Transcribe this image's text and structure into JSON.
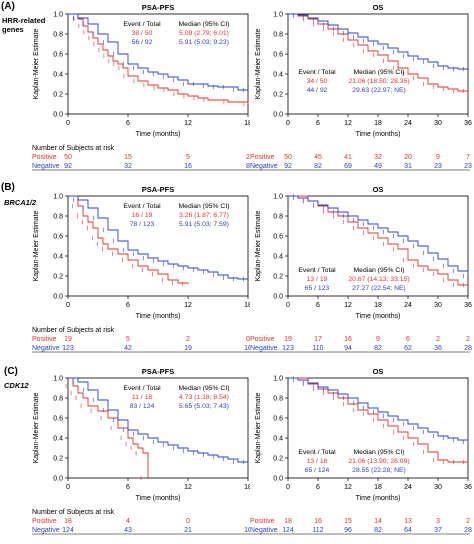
{
  "colors": {
    "positive": "#e8322b",
    "negative": "#2b3fd6",
    "axis": "#000000"
  },
  "common": {
    "ylabel": "Kaplan-Meier Estimate",
    "xlabel": "Time (months)",
    "yticks": [
      "0.0",
      "0.2",
      "0.4",
      "0.6",
      "0.8",
      "1.0"
    ],
    "legend_header_event": "Event / Total",
    "legend_header_median": "Median (95% CI)",
    "risk_title": "Number of Subjects at risk",
    "positive_label": "Positive",
    "negative_label": "Negative"
  },
  "panels": [
    {
      "label": "(A)",
      "sublabel": [
        "HRR-related",
        "genes"
      ],
      "italic": false
    },
    {
      "label": "(B)",
      "sublabel": [
        "BRCA1/2"
      ],
      "italic": true
    },
    {
      "label": "(C)",
      "sublabel": [
        "CDK12"
      ],
      "italic": true
    }
  ],
  "chart_data": [
    {
      "type": "line",
      "title": "PSA-PFS",
      "xlim": [
        0,
        18
      ],
      "ylim": [
        0,
        1
      ],
      "xticks": [
        0,
        6,
        12,
        18
      ],
      "legend": {
        "position": "top-right",
        "pos_event": "38 / 50",
        "pos_median": "5.09 (2.79; 6.01)",
        "neg_event": "56 / 92",
        "neg_median": "5.91 (5.03; 9.23)"
      },
      "series": [
        {
          "name": "Positive",
          "x": [
            0,
            1,
            1.5,
            2,
            2.5,
            3,
            3.5,
            4,
            4.5,
            5,
            5.5,
            6,
            7,
            8,
            9,
            10,
            11,
            12,
            13,
            14,
            16,
            18
          ],
          "y": [
            1.0,
            0.95,
            0.88,
            0.82,
            0.76,
            0.7,
            0.64,
            0.58,
            0.53,
            0.5,
            0.46,
            0.38,
            0.33,
            0.29,
            0.26,
            0.24,
            0.2,
            0.18,
            0.16,
            0.14,
            0.12,
            0.1
          ]
        },
        {
          "name": "Negative",
          "x": [
            0,
            1,
            2,
            3,
            4,
            5,
            6,
            7,
            8,
            9,
            10,
            11,
            12,
            13,
            14,
            15,
            16,
            17,
            18
          ],
          "y": [
            1.0,
            0.96,
            0.9,
            0.8,
            0.72,
            0.6,
            0.5,
            0.46,
            0.42,
            0.4,
            0.37,
            0.34,
            0.3,
            0.3,
            0.28,
            0.27,
            0.27,
            0.24,
            0.24
          ]
        }
      ],
      "risk": {
        "positive": [
          "50",
          "15",
          "5",
          "2"
        ],
        "negative": [
          "92",
          "32",
          "16",
          "8"
        ]
      }
    },
    {
      "type": "line",
      "title": "OS",
      "xlim": [
        0,
        36
      ],
      "ylim": [
        0,
        1
      ],
      "xticks": [
        0,
        6,
        12,
        18,
        24,
        30,
        36
      ],
      "legend": {
        "position": "middle-left",
        "pos_event": "34 / 50",
        "pos_median": "21.06 (18.50; 28.35)",
        "neg_event": "44 / 92",
        "neg_median": "29.63 (22.97; NE)"
      },
      "series": [
        {
          "name": "Positive",
          "x": [
            0,
            2,
            4,
            6,
            8,
            10,
            12,
            14,
            16,
            18,
            20,
            22,
            24,
            26,
            28,
            30,
            32,
            34,
            36
          ],
          "y": [
            1.0,
            0.98,
            0.95,
            0.9,
            0.85,
            0.8,
            0.74,
            0.69,
            0.63,
            0.59,
            0.53,
            0.46,
            0.4,
            0.36,
            0.3,
            0.27,
            0.25,
            0.23,
            0.23
          ]
        },
        {
          "name": "Negative",
          "x": [
            0,
            2,
            4,
            6,
            8,
            10,
            12,
            14,
            16,
            18,
            20,
            22,
            24,
            26,
            28,
            30,
            32,
            34,
            36
          ],
          "y": [
            1.0,
            0.99,
            0.96,
            0.93,
            0.89,
            0.85,
            0.81,
            0.77,
            0.73,
            0.7,
            0.66,
            0.62,
            0.58,
            0.55,
            0.52,
            0.48,
            0.46,
            0.45,
            0.45
          ]
        }
      ],
      "risk": {
        "positive": [
          "50",
          "45",
          "41",
          "32",
          "20",
          "9",
          "7"
        ],
        "negative": [
          "92",
          "82",
          "69",
          "49",
          "31",
          "23",
          "23"
        ]
      }
    },
    {
      "type": "line",
      "title": "PSA-PFS",
      "xlim": [
        0,
        18
      ],
      "ylim": [
        0,
        1
      ],
      "xticks": [
        0,
        6,
        12,
        18
      ],
      "legend": {
        "position": "top-right",
        "pos_event": "16 / 19",
        "pos_median": "3.26 (1.87; 6.77)",
        "neg_event": "78 / 123",
        "neg_median": "5.91 (5.03; 7.59)"
      },
      "series": [
        {
          "name": "Positive",
          "x": [
            0,
            1,
            1.5,
            2,
            2.5,
            3,
            3.5,
            4,
            5,
            6,
            7,
            8,
            9,
            10,
            11,
            12
          ],
          "y": [
            1.0,
            0.9,
            0.8,
            0.74,
            0.68,
            0.58,
            0.52,
            0.47,
            0.42,
            0.36,
            0.3,
            0.26,
            0.22,
            0.16,
            0.13,
            0.12
          ]
        },
        {
          "name": "Negative",
          "x": [
            0,
            1,
            2,
            3,
            4,
            5,
            6,
            7,
            8,
            9,
            10,
            11,
            12,
            13,
            14,
            15,
            16,
            17,
            18
          ],
          "y": [
            1.0,
            0.96,
            0.88,
            0.78,
            0.66,
            0.55,
            0.46,
            0.42,
            0.38,
            0.35,
            0.32,
            0.3,
            0.28,
            0.26,
            0.24,
            0.21,
            0.18,
            0.17,
            0.17
          ]
        }
      ],
      "risk": {
        "positive": [
          "19",
          "5",
          "2",
          "0"
        ],
        "negative": [
          "123",
          "42",
          "19",
          "10"
        ]
      }
    },
    {
      "type": "line",
      "title": "OS",
      "xlim": [
        0,
        36
      ],
      "ylim": [
        0,
        1
      ],
      "xticks": [
        0,
        6,
        12,
        18,
        24,
        30,
        36
      ],
      "legend": {
        "position": "bottom-left",
        "pos_event": "13 / 19",
        "pos_median": "20.67 (14.13; 33.15)",
        "neg_event": "65 / 123",
        "neg_median": "27.27 (22.54; NE)"
      },
      "series": [
        {
          "name": "Positive",
          "x": [
            0,
            2,
            4,
            6,
            8,
            10,
            12,
            14,
            16,
            18,
            20,
            22,
            24,
            26,
            28,
            30,
            32,
            34,
            36
          ],
          "y": [
            1.0,
            1.0,
            0.95,
            0.9,
            0.84,
            0.8,
            0.74,
            0.68,
            0.63,
            0.58,
            0.52,
            0.47,
            0.36,
            0.3,
            0.26,
            0.22,
            0.16,
            0.11,
            0.11
          ]
        },
        {
          "name": "Negative",
          "x": [
            0,
            2,
            4,
            6,
            8,
            10,
            12,
            14,
            16,
            18,
            20,
            22,
            24,
            26,
            28,
            30,
            32,
            34,
            36
          ],
          "y": [
            1.0,
            0.98,
            0.95,
            0.91,
            0.88,
            0.84,
            0.8,
            0.76,
            0.72,
            0.68,
            0.64,
            0.6,
            0.55,
            0.5,
            0.43,
            0.37,
            0.3,
            0.25,
            0.2
          ]
        }
      ],
      "risk": {
        "positive": [
          "19",
          "17",
          "16",
          "9",
          "6",
          "2",
          "2"
        ],
        "negative": [
          "123",
          "110",
          "94",
          "82",
          "62",
          "36",
          "28"
        ]
      }
    },
    {
      "type": "line",
      "title": "PSA-PFS",
      "xlim": [
        0,
        18
      ],
      "ylim": [
        0,
        1
      ],
      "xticks": [
        0,
        6,
        12,
        18
      ],
      "legend": {
        "position": "top-right",
        "pos_event": "11 / 18",
        "pos_median": "4.73 (1.18; 8.54)",
        "neg_event": "83 / 124",
        "neg_median": "5.65 (5.03; 7.43)"
      },
      "series": [
        {
          "name": "Positive",
          "x": [
            0,
            0.5,
            1,
            1.5,
            2,
            3,
            4,
            5,
            6,
            6.5,
            7,
            7.5,
            8
          ],
          "y": [
            1.0,
            0.92,
            0.85,
            0.8,
            0.72,
            0.67,
            0.6,
            0.5,
            0.4,
            0.34,
            0.3,
            0.25,
            0.0
          ]
        },
        {
          "name": "Negative",
          "x": [
            0,
            1,
            2,
            3,
            4,
            5,
            6,
            7,
            8,
            9,
            10,
            11,
            12,
            13,
            14,
            15,
            16,
            17,
            18
          ],
          "y": [
            1.0,
            0.96,
            0.88,
            0.78,
            0.68,
            0.58,
            0.48,
            0.44,
            0.4,
            0.36,
            0.33,
            0.3,
            0.27,
            0.25,
            0.23,
            0.21,
            0.19,
            0.16,
            0.16
          ]
        }
      ],
      "risk": {
        "positive": [
          "18",
          "4",
          "0",
          ""
        ],
        "negative": [
          "124",
          "43",
          "21",
          "10"
        ]
      }
    },
    {
      "type": "line",
      "title": "OS",
      "xlim": [
        0,
        36
      ],
      "ylim": [
        0,
        1
      ],
      "xticks": [
        0,
        6,
        12,
        18,
        24,
        30,
        36
      ],
      "legend": {
        "position": "bottom-left",
        "pos_event": "13 / 18",
        "pos_median": "21.06 (13.90; 26.09)",
        "neg_event": "65 / 124",
        "neg_median": "28.55 (22.28; NE)"
      },
      "series": [
        {
          "name": "Positive",
          "x": [
            0,
            2,
            4,
            6,
            8,
            10,
            12,
            14,
            16,
            18,
            20,
            22,
            24,
            26,
            28,
            30,
            32,
            34,
            36
          ],
          "y": [
            1.0,
            1.0,
            0.94,
            0.89,
            0.85,
            0.8,
            0.74,
            0.68,
            0.64,
            0.58,
            0.52,
            0.46,
            0.4,
            0.34,
            0.26,
            0.18,
            0.16,
            0.16,
            0.16
          ]
        },
        {
          "name": "Negative",
          "x": [
            0,
            2,
            4,
            6,
            8,
            10,
            12,
            14,
            16,
            18,
            20,
            22,
            24,
            26,
            28,
            30,
            32,
            34,
            36
          ],
          "y": [
            1.0,
            0.98,
            0.95,
            0.91,
            0.88,
            0.84,
            0.8,
            0.75,
            0.7,
            0.66,
            0.62,
            0.58,
            0.54,
            0.5,
            0.46,
            0.42,
            0.4,
            0.38,
            0.36
          ]
        }
      ],
      "risk": {
        "positive": [
          "18",
          "16",
          "15",
          "14",
          "13",
          "3",
          "2"
        ],
        "negative": [
          "124",
          "112",
          "96",
          "82",
          "64",
          "37",
          "28"
        ]
      }
    }
  ]
}
